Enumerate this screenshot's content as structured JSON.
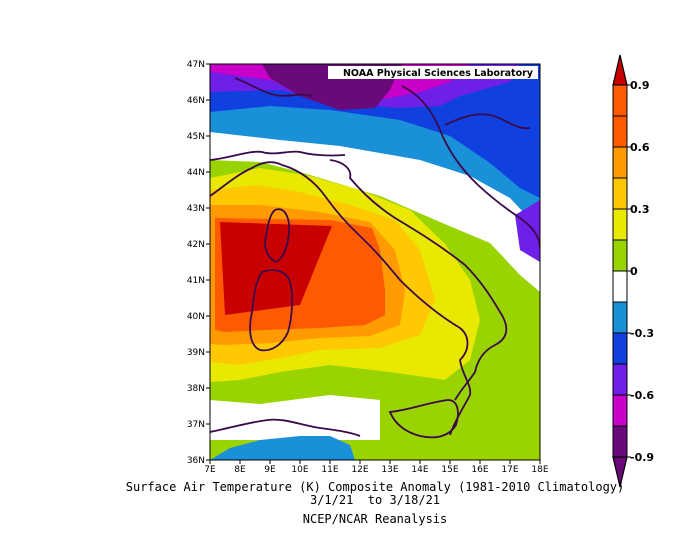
{
  "map": {
    "credit": "NOAA Physical Sciences Laboratory",
    "lat_labels": [
      "47N",
      "46N",
      "45N",
      "44N",
      "43N",
      "42N",
      "41N",
      "40N",
      "39N",
      "38N",
      "37N",
      "36N"
    ],
    "lon_labels": [
      "7E",
      "8E",
      "9E",
      "10E",
      "11E",
      "12E",
      "13E",
      "14E",
      "15E",
      "16E",
      "17E",
      "18E"
    ],
    "lat_range": [
      36,
      47
    ],
    "lon_range": [
      7,
      18
    ]
  },
  "colorbar": {
    "labels": [
      "0.9",
      "0.6",
      "0.3",
      "0",
      "-0.3",
      "-0.6",
      "-0.9"
    ],
    "colors": {
      "c_n09": "#6a0a7a",
      "c_n06": "#c800c8",
      "c_n045": "#6f1fe8",
      "c_n03": "#1040e0",
      "c_n015": "#1a90d8",
      "c_0": "#ffffff",
      "c_015": "#9ad400",
      "c_03": "#e8e800",
      "c_045": "#ffc800",
      "c_06": "#ff9a00",
      "c_075": "#ff5a00",
      "c_09": "#c80000"
    }
  },
  "caption": {
    "line1": "Surface Air Temperature (K) Composite Anomaly (1981-2010 Climatology)",
    "line2": "3/1/21  to 3/18/21",
    "line3": "NCEP/NCAR Reanalysis"
  }
}
